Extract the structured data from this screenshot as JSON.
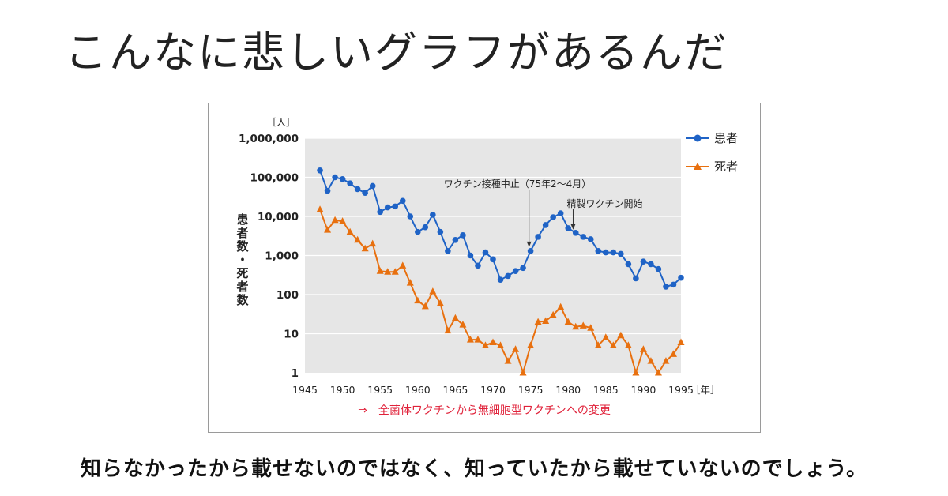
{
  "headline": "こんなに悲しいグラフがあるんだ",
  "footer": "知らなかったから載せないのではなく、知っていたから載せていないのでしょう。",
  "colors": {
    "patients": "#1f63c6",
    "deaths": "#e8700f",
    "caption": "#e0223a",
    "plot_bg": "#e6e6e6"
  },
  "chart_data": {
    "type": "line",
    "y_scale": "log",
    "ylim": [
      1,
      1000000
    ],
    "xlim": [
      1945,
      1995
    ],
    "grid": "horizontal",
    "legend_position": "top-right",
    "y_unit": "［人］",
    "x_unit": "［年］",
    "ylabel": "患者数・死者数",
    "xlabel": "",
    "y_ticks": [
      "1",
      "10",
      "100",
      "1,000",
      "10,000",
      "100,000",
      "1,000,000"
    ],
    "x_ticks": [
      "1945",
      "1950",
      "1955",
      "1960",
      "1965",
      "1970",
      "1975",
      "1980",
      "1985",
      "1990",
      "1995"
    ],
    "caption": "⇒　全菌体ワクチンから無細胞型ワクチンへの変更",
    "annotations": [
      {
        "text": "ワクチン接種中止（75年2〜4月）",
        "x": 1974.8,
        "y": 1300
      },
      {
        "text": "精製ワクチン開始",
        "x": 1981.5,
        "y": 4000
      }
    ],
    "series": [
      {
        "name": "患者",
        "marker": "circle",
        "x": [
          1947,
          1948,
          1949,
          1950,
          1951,
          1952,
          1953,
          1954,
          1955,
          1956,
          1957,
          1958,
          1959,
          1960,
          1961,
          1962,
          1963,
          1964,
          1965,
          1966,
          1967,
          1968,
          1969,
          1970,
          1971,
          1972,
          1973,
          1974,
          1975,
          1976,
          1977,
          1978,
          1979,
          1980,
          1981,
          1982,
          1983,
          1984,
          1985,
          1986,
          1987,
          1988,
          1989,
          1990,
          1991,
          1992,
          1993,
          1994,
          1995
        ],
        "values": [
          150000,
          45000,
          100000,
          90000,
          70000,
          50000,
          40000,
          60000,
          13000,
          17000,
          18000,
          25000,
          10000,
          4000,
          5300,
          11000,
          4000,
          1300,
          2500,
          3300,
          1000,
          550,
          1200,
          800,
          240,
          300,
          400,
          480,
          1300,
          3000,
          6000,
          9500,
          12000,
          5000,
          3800,
          3000,
          2600,
          1300,
          1200,
          1200,
          1100,
          600,
          260,
          700,
          600,
          450,
          160,
          180,
          270
        ]
      },
      {
        "name": "死者",
        "marker": "triangle",
        "x": [
          1947,
          1948,
          1949,
          1950,
          1951,
          1952,
          1953,
          1954,
          1955,
          1956,
          1957,
          1958,
          1959,
          1960,
          1961,
          1962,
          1963,
          1964,
          1965,
          1966,
          1967,
          1968,
          1969,
          1970,
          1971,
          1972,
          1973,
          1974,
          1975,
          1976,
          1977,
          1978,
          1979,
          1980,
          1981,
          1982,
          1983,
          1984,
          1985,
          1986,
          1987,
          1988,
          1989,
          1990,
          1991,
          1992,
          1993,
          1994,
          1995
        ],
        "values": [
          15000,
          4500,
          8000,
          7500,
          4000,
          2500,
          1500,
          2000,
          400,
          380,
          380,
          550,
          200,
          70,
          50,
          120,
          60,
          12,
          25,
          17,
          7,
          7,
          5,
          6,
          5,
          2,
          4,
          1,
          5,
          20,
          21,
          30,
          48,
          20,
          15,
          16,
          14,
          5,
          8,
          5,
          9,
          5,
          1,
          4,
          2,
          1,
          2,
          3,
          6
        ]
      }
    ]
  }
}
